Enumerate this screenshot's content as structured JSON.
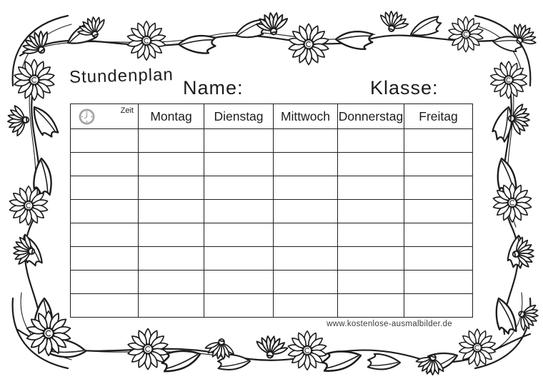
{
  "page": {
    "title": "Stundenplan",
    "name_label": "Name:",
    "klasse_label": "Klasse:",
    "watermark": "www.kostenlose-ausmalbilder.de"
  },
  "table": {
    "time_header": "Zeit",
    "columns": [
      "Montag",
      "Dienstag",
      "Mittwoch",
      "Donnerstag",
      "Freitag"
    ],
    "empty_rows": 8
  },
  "icons": {
    "zeit": "clock-icon",
    "frame": "floral-garland-border"
  },
  "colors": {
    "ink": "#1d1d1d",
    "clock_gray": "#b5b5b5",
    "paper": "#ffffff"
  }
}
